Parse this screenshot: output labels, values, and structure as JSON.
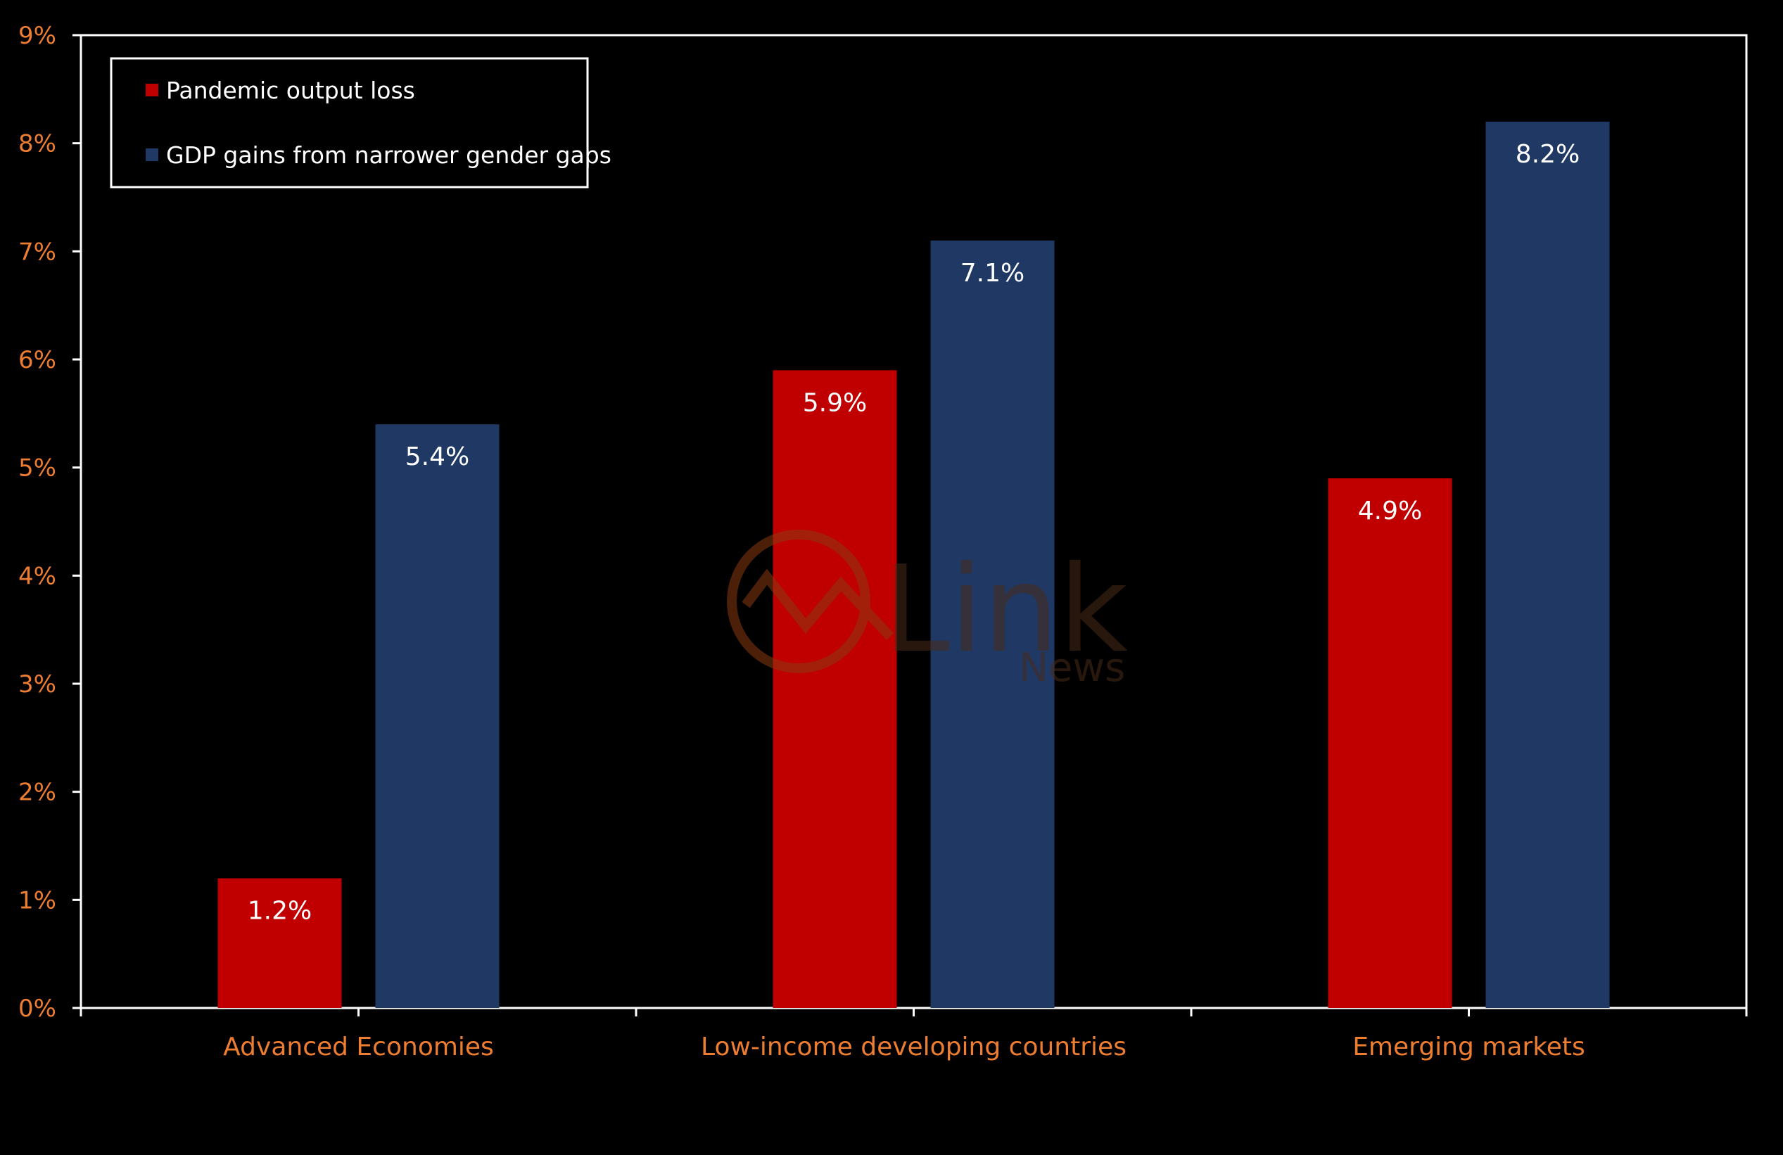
{
  "chart_data": {
    "type": "bar",
    "categories": [
      "Advanced Economies",
      "Low-income developing countries",
      "Emerging markets"
    ],
    "series": [
      {
        "name": "Pandemic output loss",
        "values": [
          1.2,
          5.9,
          4.9
        ],
        "labels": [
          "1.2%",
          "5.9%",
          "4.9%"
        ],
        "color": "#C00000"
      },
      {
        "name": "GDP gains from narrower gender gaps",
        "values": [
          5.4,
          7.1,
          8.2
        ],
        "labels": [
          "5.4%",
          "7.1%",
          "8.2%"
        ],
        "color": "#1F3864"
      }
    ],
    "ylim": [
      0,
      9
    ],
    "yticks": [
      "0%",
      "1%",
      "2%",
      "3%",
      "4%",
      "5%",
      "6%",
      "7%",
      "8%",
      "9%"
    ],
    "legend_position": "top-left",
    "grid": false,
    "axis_color": "#FFFFFF",
    "tick_label_color": "#ED7D31",
    "background": "#000000"
  },
  "watermark": {
    "brand": "Link",
    "sub": "News",
    "color": "#5A2E16"
  }
}
